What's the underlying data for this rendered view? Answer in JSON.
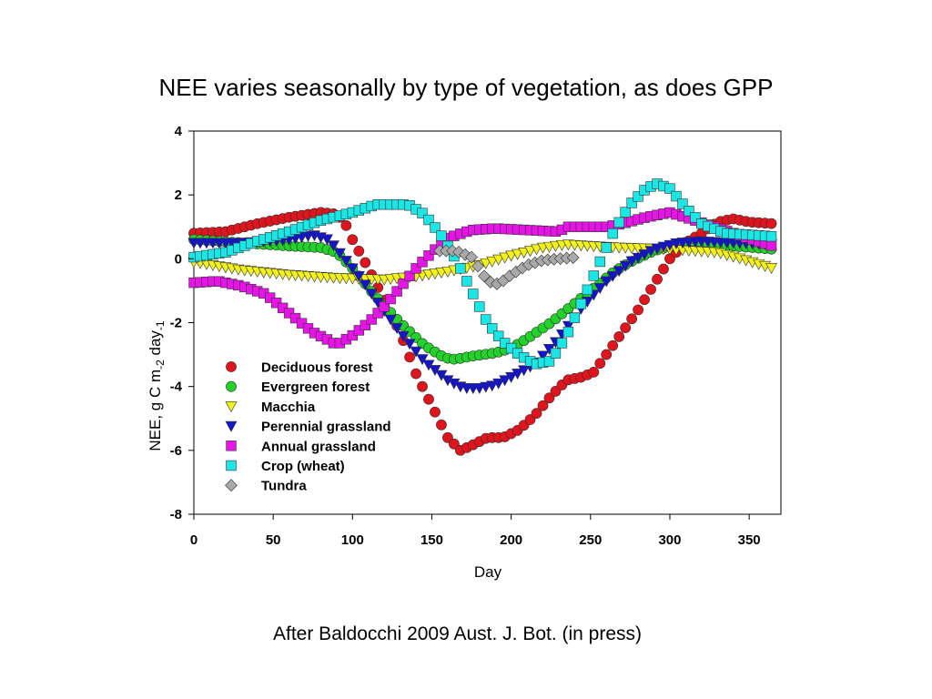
{
  "slide": {
    "title": "NEE varies seasonally by type of vegetation, as does GPP",
    "caption": "After Baldocchi 2009 Aust. J. Bot. (in press)"
  },
  "chart_data": {
    "type": "scatter",
    "title": "",
    "xlabel": "Day",
    "ylabel_main": "NEE, g C m",
    "ylabel_sub1": "-2",
    "ylabel_mid": " day",
    "ylabel_sub2": "-1",
    "xlim": [
      0,
      370
    ],
    "ylim": [
      -8,
      4
    ],
    "xticks": [
      0,
      50,
      100,
      150,
      200,
      250,
      300,
      350
    ],
    "yticks": [
      -8,
      -6,
      -4,
      -2,
      0,
      2,
      4
    ],
    "grid": false,
    "legend_position": "lower-left",
    "step": 4,
    "series": [
      {
        "name": "Deciduous forest",
        "marker": "circle",
        "color": "#e0141c",
        "anchors": [
          [
            0,
            0.8
          ],
          [
            20,
            0.85
          ],
          [
            40,
            1.1
          ],
          [
            60,
            1.3
          ],
          [
            80,
            1.45
          ],
          [
            90,
            1.4
          ],
          [
            95,
            1.15
          ],
          [
            100,
            0.6
          ],
          [
            110,
            -0.3
          ],
          [
            120,
            -1.3
          ],
          [
            130,
            -2.3
          ],
          [
            140,
            -3.6
          ],
          [
            150,
            -4.6
          ],
          [
            160,
            -5.6
          ],
          [
            168,
            -6.0
          ],
          [
            175,
            -5.85
          ],
          [
            185,
            -5.6
          ],
          [
            195,
            -5.6
          ],
          [
            205,
            -5.35
          ],
          [
            215,
            -4.9
          ],
          [
            225,
            -4.3
          ],
          [
            235,
            -3.8
          ],
          [
            245,
            -3.7
          ],
          [
            252,
            -3.55
          ],
          [
            260,
            -3.0
          ],
          [
            270,
            -2.3
          ],
          [
            280,
            -1.6
          ],
          [
            290,
            -0.8
          ],
          [
            300,
            0.0
          ],
          [
            310,
            0.5
          ],
          [
            320,
            0.8
          ],
          [
            330,
            1.15
          ],
          [
            340,
            1.25
          ],
          [
            350,
            1.15
          ],
          [
            365,
            1.1
          ]
        ]
      },
      {
        "name": "Evergreen forest",
        "marker": "circle",
        "color": "#22d12a",
        "anchors": [
          [
            0,
            0.6
          ],
          [
            30,
            0.5
          ],
          [
            60,
            0.4
          ],
          [
            80,
            0.35
          ],
          [
            90,
            0.2
          ],
          [
            100,
            -0.3
          ],
          [
            115,
            -1.2
          ],
          [
            130,
            -2.0
          ],
          [
            145,
            -2.7
          ],
          [
            158,
            -3.1
          ],
          [
            165,
            -3.15
          ],
          [
            175,
            -3.05
          ],
          [
            190,
            -2.95
          ],
          [
            200,
            -2.8
          ],
          [
            210,
            -2.5
          ],
          [
            225,
            -2.0
          ],
          [
            240,
            -1.4
          ],
          [
            255,
            -0.8
          ],
          [
            265,
            -0.4
          ],
          [
            275,
            -0.1
          ],
          [
            290,
            0.25
          ],
          [
            305,
            0.45
          ],
          [
            320,
            0.5
          ],
          [
            340,
            0.4
          ],
          [
            365,
            0.3
          ]
        ]
      },
      {
        "name": "Macchia",
        "marker": "triangle-down",
        "color": "#f2f21a",
        "anchors": [
          [
            0,
            -0.1
          ],
          [
            30,
            -0.35
          ],
          [
            60,
            -0.5
          ],
          [
            90,
            -0.6
          ],
          [
            120,
            -0.65
          ],
          [
            140,
            -0.55
          ],
          [
            160,
            -0.4
          ],
          [
            180,
            -0.2
          ],
          [
            200,
            0.1
          ],
          [
            220,
            0.35
          ],
          [
            235,
            0.45
          ],
          [
            250,
            0.4
          ],
          [
            270,
            0.35
          ],
          [
            300,
            0.3
          ],
          [
            330,
            0.2
          ],
          [
            345,
            0.0
          ],
          [
            365,
            -0.3
          ]
        ]
      },
      {
        "name": "Perennial grassland",
        "marker": "triangle-down",
        "color": "#1414c8",
        "anchors": [
          [
            0,
            0.5
          ],
          [
            30,
            0.5
          ],
          [
            60,
            0.6
          ],
          [
            75,
            0.75
          ],
          [
            85,
            0.6
          ],
          [
            95,
            0.0
          ],
          [
            105,
            -0.6
          ],
          [
            115,
            -1.3
          ],
          [
            130,
            -2.3
          ],
          [
            145,
            -3.2
          ],
          [
            160,
            -3.8
          ],
          [
            170,
            -4.05
          ],
          [
            180,
            -4.05
          ],
          [
            190,
            -3.95
          ],
          [
            200,
            -3.7
          ],
          [
            215,
            -3.3
          ],
          [
            230,
            -2.5
          ],
          [
            245,
            -1.5
          ],
          [
            260,
            -0.7
          ],
          [
            275,
            -0.1
          ],
          [
            290,
            0.3
          ],
          [
            305,
            0.5
          ],
          [
            320,
            0.55
          ],
          [
            340,
            0.5
          ],
          [
            365,
            0.45
          ]
        ]
      },
      {
        "name": "Annual grassland",
        "marker": "square",
        "color": "#e614e6",
        "anchors": [
          [
            0,
            -0.75
          ],
          [
            15,
            -0.7
          ],
          [
            30,
            -0.85
          ],
          [
            45,
            -1.1
          ],
          [
            55,
            -1.5
          ],
          [
            65,
            -1.9
          ],
          [
            75,
            -2.3
          ],
          [
            85,
            -2.55
          ],
          [
            90,
            -2.7
          ],
          [
            100,
            -2.4
          ],
          [
            110,
            -2.0
          ],
          [
            120,
            -1.5
          ],
          [
            130,
            -0.9
          ],
          [
            140,
            -0.3
          ],
          [
            150,
            0.2
          ],
          [
            160,
            0.65
          ],
          [
            175,
            0.9
          ],
          [
            190,
            0.95
          ],
          [
            210,
            0.9
          ],
          [
            230,
            0.85
          ],
          [
            235,
            1.0
          ],
          [
            260,
            1.0
          ],
          [
            270,
            1.1
          ],
          [
            285,
            1.3
          ],
          [
            300,
            1.45
          ],
          [
            310,
            1.3
          ],
          [
            325,
            1.05
          ],
          [
            340,
            0.8
          ],
          [
            355,
            0.55
          ],
          [
            365,
            0.4
          ]
        ]
      },
      {
        "name": "Crop (wheat)",
        "marker": "square",
        "color": "#1ae6e6",
        "anchors": [
          [
            0,
            0.05
          ],
          [
            20,
            0.2
          ],
          [
            40,
            0.55
          ],
          [
            60,
            0.85
          ],
          [
            80,
            1.2
          ],
          [
            100,
            1.45
          ],
          [
            115,
            1.7
          ],
          [
            135,
            1.7
          ],
          [
            145,
            1.4
          ],
          [
            155,
            0.8
          ],
          [
            165,
            0.0
          ],
          [
            175,
            -1.0
          ],
          [
            185,
            -2.0
          ],
          [
            195,
            -2.6
          ],
          [
            205,
            -3.0
          ],
          [
            215,
            -3.3
          ],
          [
            225,
            -3.2
          ],
          [
            235,
            -2.4
          ],
          [
            245,
            -1.3
          ],
          [
            255,
            -0.2
          ],
          [
            265,
            0.9
          ],
          [
            275,
            1.7
          ],
          [
            285,
            2.2
          ],
          [
            292,
            2.35
          ],
          [
            300,
            2.2
          ],
          [
            310,
            1.6
          ],
          [
            320,
            1.1
          ],
          [
            335,
            0.8
          ],
          [
            350,
            0.75
          ],
          [
            365,
            0.7
          ]
        ]
      },
      {
        "name": "Tundra",
        "marker": "diamond",
        "color": "#a9a9a9",
        "anchors": [
          [
            155,
            0.25
          ],
          [
            165,
            0.25
          ],
          [
            175,
            0.05
          ],
          [
            180,
            -0.3
          ],
          [
            185,
            -0.7
          ],
          [
            192,
            -0.8
          ],
          [
            200,
            -0.5
          ],
          [
            210,
            -0.2
          ],
          [
            220,
            -0.05
          ],
          [
            230,
            0.0
          ],
          [
            242,
            0.05
          ]
        ]
      }
    ]
  }
}
